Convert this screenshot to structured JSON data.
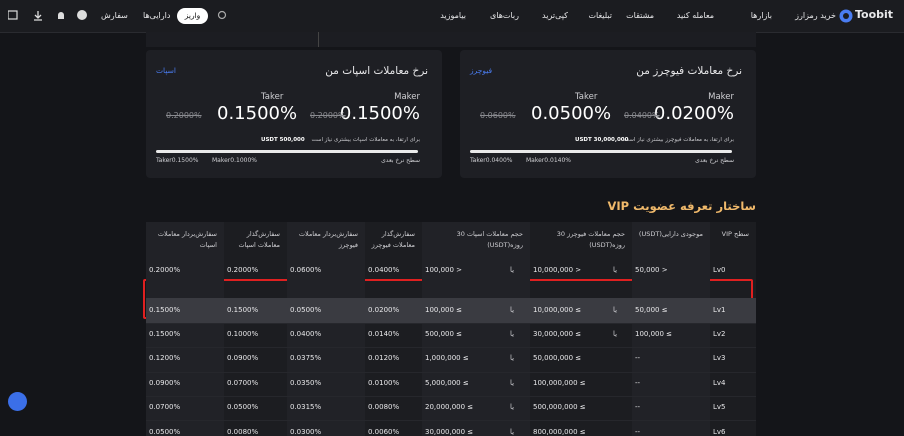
{
  "nav": {
    "logo": "Toobit",
    "menu": [
      "خرید رمزارز",
      "بازارها",
      "معامله کنید",
      "مشتقات",
      "تبلیغات",
      "کپی‌ترید",
      "ربات‌های",
      "بیاموزید"
    ],
    "orders": "سفارش",
    "assets": "دارایی‌ها",
    "deposit": "واریز"
  },
  "futures_card": {
    "title": "نرخ معاملات فیوچرز من",
    "link": "فیوچرز",
    "maker_label": "Maker",
    "maker_rate": "0.0200%",
    "maker_old": "0.0400%",
    "taker_label": "Taker",
    "taker_rate": "0.0500%",
    "taker_old": "0.0600%",
    "note": "برای ارتقا، به معاملات فیوچرز بیشتری نیاز است",
    "note_amount": "USDT 30,000,000",
    "next_level": "سطح نرخ بعدی",
    "next_maker": "Maker0.0140%",
    "next_taker": "Taker0.0400%"
  },
  "spot_card": {
    "title": "نرخ معاملات اسپات من",
    "link": "اسپات",
    "maker_label": "Maker",
    "maker_rate": "0.1500%",
    "maker_old": "0.2000%",
    "taker_label": "Taker",
    "taker_rate": "0.1500%",
    "taker_old": "0.2000%",
    "note": "برای ارتقا، به معاملات اسپات بیشتری نیاز است",
    "note_amount": "USDT 500,000",
    "next_level": "سطح نرخ بعدی",
    "next_maker": "Maker0.1000%",
    "next_taker": "Taker0.1500%"
  },
  "vip": {
    "title": "ساختار تعرفه عضویت VIP",
    "headers": [
      "سطح VIP",
      "موجودی دارایی(USDT)",
      "حجم معاملات فیوچرز 30 روزه(USDT)",
      "حجم معاملات اسپات 30 روزه(USDT)",
      "سفارش‌گذار معاملات فیوچرز",
      "سفارش‌بردار معاملات فیوچرز",
      "سفارش‌گذار معاملات اسپات",
      "سفارش‌بردار معاملات اسپات"
    ],
    "rows": [
      [
        "Lv0",
        "50,000 >",
        "10,000,000 >",
        "100,000 >",
        "0.0400%",
        "0.0600%",
        "0.2000%",
        "0.2000%",
        [
          "یا",
          "یا"
        ]
      ],
      [
        "Lv1",
        "50,000 ≤",
        "10,000,000 ≤",
        "100,000 ≤",
        "0.0200%",
        "0.0500%",
        "0.1500%",
        "0.1500%",
        [
          "یا",
          "یا"
        ]
      ],
      [
        "Lv2",
        "100,000 ≤",
        "30,000,000 ≤",
        "500,000 ≤",
        "0.0140%",
        "0.0400%",
        "0.1000%",
        "0.1500%",
        [
          "یا",
          "یا"
        ]
      ],
      [
        "Lv3",
        "--",
        "50,000,000 ≤",
        "1,000,000 ≤",
        "0.0120%",
        "0.0375%",
        "0.0900%",
        "0.1200%",
        [
          "یا"
        ]
      ],
      [
        "Lv4",
        "--",
        "100,000,000 ≤",
        "5,000,000 ≤",
        "0.0100%",
        "0.0350%",
        "0.0700%",
        "0.0900%",
        [
          "یا"
        ]
      ],
      [
        "Lv5",
        "--",
        "500,000,000 ≤",
        "20,000,000 ≤",
        "0.0080%",
        "0.0315%",
        "0.0500%",
        "0.0700%",
        [
          "یا"
        ]
      ],
      [
        "Lv6",
        "--",
        "800,000,000 ≤",
        "30,000,000 ≤",
        "0.0060%",
        "0.0300%",
        "0.0080%",
        "0.0500%",
        [
          "یا"
        ]
      ]
    ]
  }
}
